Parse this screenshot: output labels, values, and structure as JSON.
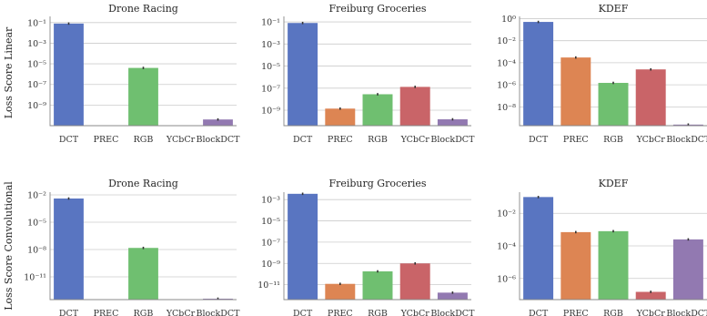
{
  "chart_data": {
    "type": "bar",
    "yscale": "log",
    "categories": [
      "DCT",
      "PREC",
      "RGB",
      "YCbCr",
      "BlockDCT"
    ],
    "colors": [
      "#5975c1",
      "#dd8553",
      "#6fbf70",
      "#c96468",
      "#9279b1"
    ],
    "row_labels": [
      "Loss Score Linear",
      "Loss Score Convolutional"
    ],
    "panels": [
      {
        "title": "Drone Racing",
        "row": 0,
        "col": 0,
        "ylim_exp": [
          -11,
          -0.4
        ],
        "ticks": [
          {
            "exp": -9,
            "label": "10⁻⁹"
          },
          {
            "exp": -7,
            "label": "10⁻⁷"
          },
          {
            "exp": -5,
            "label": "10⁻⁵"
          },
          {
            "exp": -3,
            "label": "10⁻³"
          },
          {
            "exp": -1,
            "label": "10⁻¹"
          }
        ],
        "values": [
          0.08,
          null,
          4e-06,
          null,
          4e-11
        ]
      },
      {
        "title": "Freiburg Groceries",
        "row": 0,
        "col": 1,
        "ylim_exp": [
          -10.4,
          -0.5
        ],
        "ticks": [
          {
            "exp": -9,
            "label": "10⁻⁹"
          },
          {
            "exp": -7,
            "label": "10⁻⁷"
          },
          {
            "exp": -5,
            "label": "10⁻⁵"
          },
          {
            "exp": -3,
            "label": "10⁻³"
          },
          {
            "exp": -1,
            "label": "10⁻¹"
          }
        ],
        "values": [
          0.08,
          1.4e-09,
          2.8e-08,
          1.3e-07,
          1.5e-10
        ]
      },
      {
        "title": "KDEF",
        "row": 0,
        "col": 2,
        "ylim_exp": [
          -9.7,
          0.2
        ],
        "ticks": [
          {
            "exp": -8,
            "label": "10⁻⁸"
          },
          {
            "exp": -6,
            "label": "10⁻⁶"
          },
          {
            "exp": -4,
            "label": "10⁻⁴"
          },
          {
            "exp": -2,
            "label": "10⁻²"
          },
          {
            "exp": 0,
            "label": "10⁰"
          }
        ],
        "values": [
          0.5,
          0.0003,
          1.5e-06,
          2.5e-05,
          2.5e-10
        ]
      },
      {
        "title": "Drone Racing",
        "row": 1,
        "col": 0,
        "ylim_exp": [
          -13.5,
          -1.7
        ],
        "ticks": [
          {
            "exp": -11,
            "label": "10⁻¹¹"
          },
          {
            "exp": -8,
            "label": "10⁻⁸"
          },
          {
            "exp": -5,
            "label": "10⁻⁵"
          },
          {
            "exp": -2,
            "label": "10⁻²"
          }
        ],
        "values": [
          0.004,
          null,
          1.5e-08,
          null,
          4e-14
        ]
      },
      {
        "title": "Freiburg Groceries",
        "row": 1,
        "col": 1,
        "ylim_exp": [
          -12.4,
          -2.3
        ],
        "ticks": [
          {
            "exp": -11,
            "label": "10⁻¹¹"
          },
          {
            "exp": -9,
            "label": "10⁻⁹"
          },
          {
            "exp": -7,
            "label": "10⁻⁷"
          },
          {
            "exp": -5,
            "label": "10⁻⁵"
          },
          {
            "exp": -3,
            "label": "10⁻³"
          }
        ],
        "values": [
          0.0035,
          1.2e-11,
          1.8e-10,
          1e-09,
          1.8e-12
        ]
      },
      {
        "title": "KDEF",
        "row": 1,
        "col": 2,
        "ylim_exp": [
          -7.3,
          -0.7
        ],
        "ticks": [
          {
            "exp": -6,
            "label": "10⁻⁶"
          },
          {
            "exp": -4,
            "label": "10⁻⁴"
          },
          {
            "exp": -2,
            "label": "10⁻²"
          }
        ],
        "values": [
          0.1,
          0.0007,
          0.0008,
          1.5e-07,
          0.00025
        ]
      }
    ]
  }
}
